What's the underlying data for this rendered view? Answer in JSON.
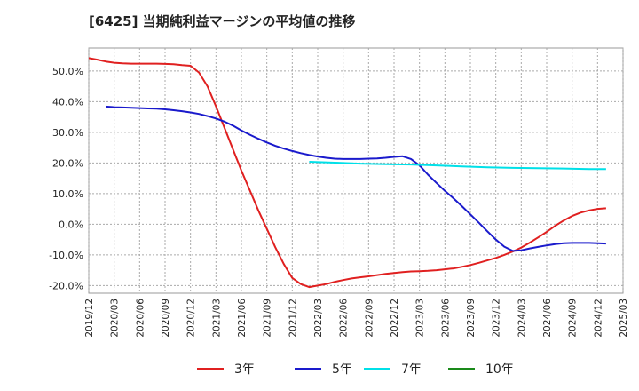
{
  "chart_data": {
    "type": "line",
    "title": "[6425]  当期純利益マージンの平均値の推移",
    "xlabel": "",
    "ylabel": "",
    "ylim": [
      -22.5,
      57.5
    ],
    "yticks": [
      50,
      40,
      30,
      20,
      10,
      0,
      -10,
      -20
    ],
    "ytick_labels": [
      "50.0%",
      "40.0%",
      "30.0%",
      "20.0%",
      "10.0%",
      "0.0%",
      "-10.0%",
      "-20.0%"
    ],
    "xlim": [
      "2019/12",
      "2025/03"
    ],
    "xtick_labels": [
      "2019/12",
      "2020/03",
      "2020/06",
      "2020/09",
      "2020/12",
      "2021/03",
      "2021/06",
      "2021/09",
      "2021/12",
      "2022/03",
      "2022/06",
      "2022/09",
      "2022/12",
      "2023/03",
      "2023/06",
      "2023/09",
      "2023/12",
      "2024/03",
      "2024/06",
      "2024/09",
      "2024/12",
      "2025/03"
    ],
    "grid": true,
    "legend_position": "bottom",
    "series": [
      {
        "name": "3年",
        "color": "#e02020",
        "points": [
          [
            "2019/12",
            54.2
          ],
          [
            "2020/01",
            53.7
          ],
          [
            "2020/02",
            53.1
          ],
          [
            "2020/03",
            52.7
          ],
          [
            "2020/04",
            52.5
          ],
          [
            "2020/05",
            52.4
          ],
          [
            "2020/06",
            52.4
          ],
          [
            "2020/07",
            52.4
          ],
          [
            "2020/08",
            52.4
          ],
          [
            "2020/09",
            52.3
          ],
          [
            "2020/10",
            52.2
          ],
          [
            "2020/11",
            51.9
          ],
          [
            "2020/12",
            51.7
          ],
          [
            "2021/01",
            49.5
          ],
          [
            "2021/02",
            45.0
          ],
          [
            "2021/03",
            38.5
          ],
          [
            "2021/04",
            31.5
          ],
          [
            "2021/05",
            24.5
          ],
          [
            "2021/06",
            17.5
          ],
          [
            "2021/07",
            11.0
          ],
          [
            "2021/08",
            4.5
          ],
          [
            "2021/09",
            -1.5
          ],
          [
            "2021/10",
            -7.5
          ],
          [
            "2021/11",
            -13.0
          ],
          [
            "2021/12",
            -17.5
          ],
          [
            "2022/01",
            -19.5
          ],
          [
            "2022/02",
            -20.5
          ],
          [
            "2022/03",
            -20.0
          ],
          [
            "2022/04",
            -19.5
          ],
          [
            "2022/05",
            -18.8
          ],
          [
            "2022/06",
            -18.2
          ],
          [
            "2022/07",
            -17.7
          ],
          [
            "2022/08",
            -17.3
          ],
          [
            "2022/09",
            -17.0
          ],
          [
            "2022/10",
            -16.6
          ],
          [
            "2022/11",
            -16.2
          ],
          [
            "2022/12",
            -15.9
          ],
          [
            "2023/01",
            -15.6
          ],
          [
            "2023/02",
            -15.4
          ],
          [
            "2023/03",
            -15.3
          ],
          [
            "2023/04",
            -15.2
          ],
          [
            "2023/05",
            -15.0
          ],
          [
            "2023/06",
            -14.7
          ],
          [
            "2023/07",
            -14.4
          ],
          [
            "2023/08",
            -13.9
          ],
          [
            "2023/09",
            -13.3
          ],
          [
            "2023/10",
            -12.6
          ],
          [
            "2023/11",
            -11.8
          ],
          [
            "2023/12",
            -11.0
          ],
          [
            "2024/01",
            -10.0
          ],
          [
            "2024/02",
            -8.9
          ],
          [
            "2024/03",
            -7.6
          ],
          [
            "2024/04",
            -6.0
          ],
          [
            "2024/05",
            -4.3
          ],
          [
            "2024/06",
            -2.5
          ],
          [
            "2024/07",
            -0.5
          ],
          [
            "2024/08",
            1.2
          ],
          [
            "2024/09",
            2.7
          ],
          [
            "2024/10",
            3.8
          ],
          [
            "2024/11",
            4.5
          ],
          [
            "2024/12",
            5.0
          ],
          [
            "2025/01",
            5.2
          ]
        ]
      },
      {
        "name": "5年",
        "color": "#1a1acc",
        "points": [
          [
            "2020/02",
            38.4
          ],
          [
            "2020/03",
            38.2
          ],
          [
            "2020/04",
            38.1
          ],
          [
            "2020/05",
            38.0
          ],
          [
            "2020/06",
            37.9
          ],
          [
            "2020/07",
            37.8
          ],
          [
            "2020/08",
            37.7
          ],
          [
            "2020/09",
            37.5
          ],
          [
            "2020/10",
            37.2
          ],
          [
            "2020/11",
            36.9
          ],
          [
            "2020/12",
            36.5
          ],
          [
            "2021/01",
            36.0
          ],
          [
            "2021/02",
            35.3
          ],
          [
            "2021/03",
            34.5
          ],
          [
            "2021/04",
            33.5
          ],
          [
            "2021/05",
            32.2
          ],
          [
            "2021/06",
            30.6
          ],
          [
            "2021/07",
            29.2
          ],
          [
            "2021/08",
            27.9
          ],
          [
            "2021/09",
            26.7
          ],
          [
            "2021/10",
            25.6
          ],
          [
            "2021/11",
            24.7
          ],
          [
            "2021/12",
            23.9
          ],
          [
            "2022/01",
            23.2
          ],
          [
            "2022/02",
            22.6
          ],
          [
            "2022/03",
            22.1
          ],
          [
            "2022/04",
            21.7
          ],
          [
            "2022/05",
            21.4
          ],
          [
            "2022/06",
            21.3
          ],
          [
            "2022/07",
            21.3
          ],
          [
            "2022/08",
            21.3
          ],
          [
            "2022/09",
            21.4
          ],
          [
            "2022/10",
            21.5
          ],
          [
            "2022/11",
            21.7
          ],
          [
            "2022/12",
            22.0
          ],
          [
            "2023/01",
            22.2
          ],
          [
            "2023/02",
            21.3
          ],
          [
            "2023/03",
            19.2
          ],
          [
            "2023/04",
            16.2
          ],
          [
            "2023/05",
            13.5
          ],
          [
            "2023/06",
            10.9
          ],
          [
            "2023/07",
            8.5
          ],
          [
            "2023/08",
            5.9
          ],
          [
            "2023/09",
            3.2
          ],
          [
            "2023/10",
            0.5
          ],
          [
            "2023/11",
            -2.3
          ],
          [
            "2023/12",
            -5.0
          ],
          [
            "2024/01",
            -7.3
          ],
          [
            "2024/02",
            -8.7
          ],
          [
            "2024/03",
            -8.5
          ],
          [
            "2024/04",
            -7.9
          ],
          [
            "2024/05",
            -7.4
          ],
          [
            "2024/06",
            -6.9
          ],
          [
            "2024/07",
            -6.5
          ],
          [
            "2024/08",
            -6.2
          ],
          [
            "2024/09",
            -6.1
          ],
          [
            "2024/10",
            -6.1
          ],
          [
            "2024/11",
            -6.1
          ],
          [
            "2024/12",
            -6.2
          ],
          [
            "2025/01",
            -6.3
          ]
        ]
      },
      {
        "name": "7年",
        "color": "#00e0e8",
        "points": [
          [
            "2022/02",
            20.4
          ],
          [
            "2022/05",
            20.1
          ],
          [
            "2022/08",
            19.8
          ],
          [
            "2022/11",
            19.6
          ],
          [
            "2023/02",
            19.5
          ],
          [
            "2023/05",
            19.2
          ],
          [
            "2023/08",
            18.9
          ],
          [
            "2023/11",
            18.6
          ],
          [
            "2024/02",
            18.4
          ],
          [
            "2024/05",
            18.3
          ],
          [
            "2024/08",
            18.2
          ],
          [
            "2024/11",
            18.0
          ],
          [
            "2025/01",
            18.0
          ]
        ]
      },
      {
        "name": "10年",
        "color": "#1a8a1a",
        "points": []
      }
    ]
  }
}
